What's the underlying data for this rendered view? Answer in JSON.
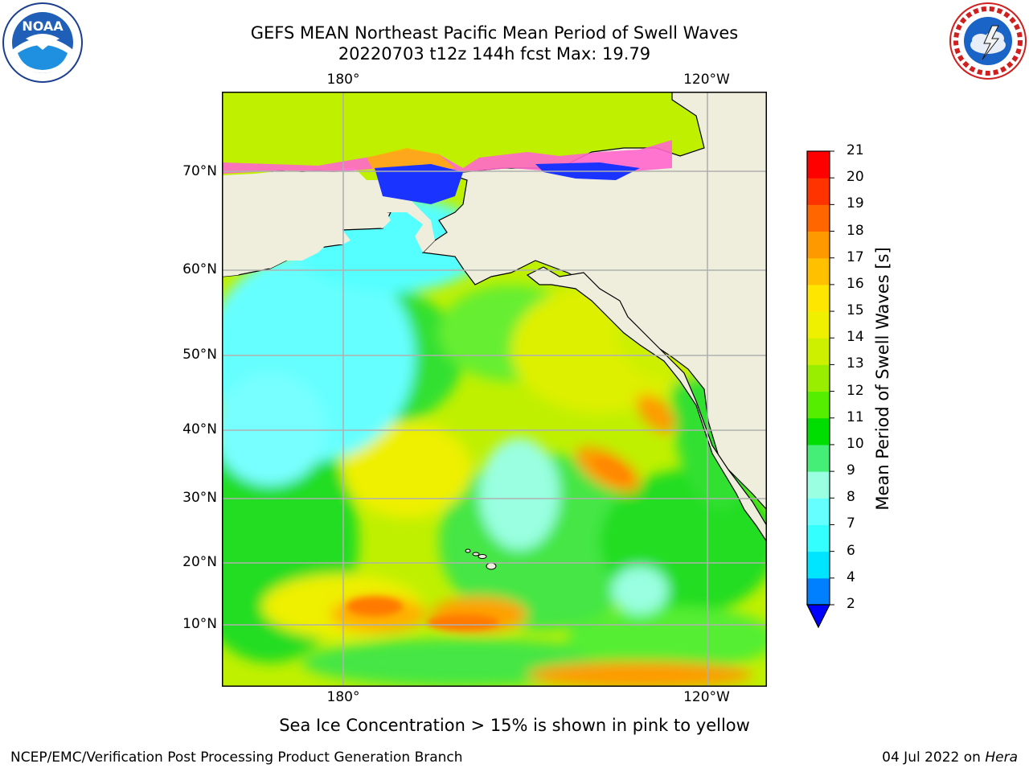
{
  "title": {
    "line1": "GEFS MEAN Northeast Pacific Mean Period of Swell Waves",
    "line2": "20220703 t12z 144h fcst   Max: 19.79"
  },
  "map": {
    "lon_labels": [
      "180°",
      "120°W"
    ],
    "lat_labels": [
      "70°N",
      "60°N",
      "50°N",
      "40°N",
      "30°N",
      "20°N",
      "10°N"
    ]
  },
  "logos": {
    "left": "NOAA",
    "left_ring": "NATIONAL OCEANIC AND ATMOSPHERIC ADMINISTRATION · U.S. DEPARTMENT OF COMMERCE",
    "right_ring": "NATIONAL WEATHER SERVICE"
  },
  "colorbar": {
    "label": "Mean Period of Swell Waves [s]",
    "ticks": [
      "2",
      "4",
      "6",
      "7",
      "8",
      "9",
      "10",
      "11",
      "12",
      "13",
      "14",
      "15",
      "16",
      "17",
      "18",
      "19",
      "20",
      "21"
    ],
    "colors": [
      "#0000ff",
      "#0080ff",
      "#00e5ff",
      "#33ffff",
      "#66ffff",
      "#99ffe0",
      "#44ee77",
      "#00dd00",
      "#55ee00",
      "#99ee00",
      "#ccf000",
      "#eef000",
      "#ffe600",
      "#ffc000",
      "#ff9900",
      "#ff6600",
      "#ff3300",
      "#ff0000"
    ]
  },
  "note": "Sea Ice Concentration > 15% is shown in pink to yellow",
  "footer": {
    "left": "NCEP/EMC/Verification Post Processing Product Generation Branch",
    "date": "04 Jul 2022 on ",
    "host": "Hera"
  }
}
